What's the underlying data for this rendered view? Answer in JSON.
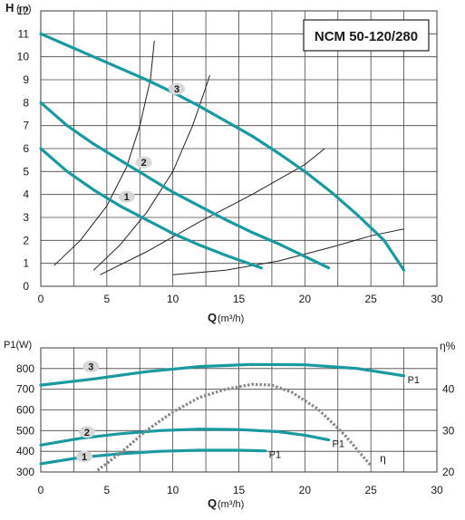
{
  "chart_data": [
    {
      "type": "line",
      "title": "NCM 50-120/280",
      "ylabel": "H",
      "yunit": "(m)",
      "xlabel": "Q",
      "xunit": "(m³/h)",
      "xlim": [
        0,
        30
      ],
      "ylim": [
        0,
        12
      ],
      "xticks": [
        "0",
        "5",
        "10",
        "15",
        "20",
        "25",
        "30"
      ],
      "yticks": [
        "0",
        "1",
        "2",
        "3",
        "4",
        "5",
        "6",
        "7",
        "8",
        "9",
        "10",
        "11",
        "12"
      ],
      "grid": true,
      "curve_color": "#1a9aa0",
      "series": [
        {
          "name": "1",
          "label_at": [
            6.5,
            3.9
          ],
          "points": [
            [
              0,
              6.0
            ],
            [
              2,
              5.0
            ],
            [
              4,
              4.2
            ],
            [
              6,
              3.5
            ],
            [
              8,
              2.9
            ],
            [
              10,
              2.3
            ],
            [
              12,
              1.8
            ],
            [
              14,
              1.35
            ],
            [
              16.7,
              0.8
            ]
          ]
        },
        {
          "name": "2",
          "label_at": [
            7.8,
            5.4
          ],
          "points": [
            [
              0,
              8.0
            ],
            [
              2,
              7.0
            ],
            [
              4,
              6.2
            ],
            [
              6,
              5.5
            ],
            [
              8,
              4.8
            ],
            [
              10,
              4.1
            ],
            [
              12,
              3.5
            ],
            [
              14,
              2.9
            ],
            [
              16,
              2.35
            ],
            [
              18,
              1.85
            ],
            [
              20,
              1.3
            ],
            [
              21.8,
              0.8
            ]
          ]
        },
        {
          "name": "3",
          "label_at": [
            10.3,
            8.6
          ],
          "points": [
            [
              0,
              11.0
            ],
            [
              2,
              10.5
            ],
            [
              4,
              10.0
            ],
            [
              6,
              9.5
            ],
            [
              8,
              9.0
            ],
            [
              10,
              8.45
            ],
            [
              12,
              7.85
            ],
            [
              14,
              7.2
            ],
            [
              16,
              6.55
            ],
            [
              18,
              5.8
            ],
            [
              20,
              5.0
            ],
            [
              22,
              4.1
            ],
            [
              24,
              3.1
            ],
            [
              26,
              2.0
            ],
            [
              27.5,
              0.7
            ]
          ]
        }
      ],
      "system_curves": [
        [
          [
            1,
            0.9
          ],
          [
            3,
            2.0
          ],
          [
            5,
            3.5
          ],
          [
            6.5,
            5.2
          ],
          [
            7.5,
            7.0
          ],
          [
            8.3,
            9.0
          ],
          [
            8.6,
            10.7
          ]
        ],
        [
          [
            4,
            0.7
          ],
          [
            6,
            1.8
          ],
          [
            8,
            3.2
          ],
          [
            10,
            5.0
          ],
          [
            11.5,
            7.0
          ],
          [
            12.4,
            8.5
          ],
          [
            12.8,
            9.2
          ]
        ],
        [
          [
            4.5,
            0.5
          ],
          [
            8,
            1.5
          ],
          [
            12,
            2.8
          ],
          [
            16,
            4.0
          ],
          [
            20,
            5.3
          ],
          [
            21.5,
            6.0
          ]
        ],
        [
          [
            10,
            0.5
          ],
          [
            14,
            0.7
          ],
          [
            18,
            1.1
          ],
          [
            22,
            1.7
          ],
          [
            25,
            2.2
          ],
          [
            27.5,
            2.5
          ]
        ]
      ]
    },
    {
      "type": "line",
      "ylabel": "P1(W)",
      "y2label": "η%",
      "xlabel": "Q",
      "xunit": "(m³/h)",
      "xlim": [
        0,
        30
      ],
      "ylim": [
        300,
        900
      ],
      "y2lim": [
        20,
        50
      ],
      "xticks": [
        "0",
        "5",
        "10",
        "15",
        "20",
        "25",
        "30"
      ],
      "yticks": [
        "300",
        "400",
        "500",
        "600",
        "700",
        "800"
      ],
      "y2ticks": [
        "20",
        "30",
        "40"
      ],
      "grid": true,
      "curve_color": "#1a9aa0",
      "efficiency_color": "#888888",
      "series": [
        {
          "name": "1",
          "end_label": "P1",
          "label_at": [
            3.3,
            375
          ],
          "points": [
            [
              0,
              340
            ],
            [
              3,
              370
            ],
            [
              6,
              388
            ],
            [
              9,
              400
            ],
            [
              12,
              405
            ],
            [
              15,
              405
            ],
            [
              17,
              402
            ]
          ]
        },
        {
          "name": "2",
          "end_label": "P1",
          "label_at": [
            3.5,
            493
          ],
          "points": [
            [
              0,
              430
            ],
            [
              3,
              463
            ],
            [
              6,
              485
            ],
            [
              9,
              500
            ],
            [
              12,
              507
            ],
            [
              15,
              505
            ],
            [
              18,
              495
            ],
            [
              20,
              478
            ],
            [
              21.8,
              455
            ]
          ]
        },
        {
          "name": "3",
          "end_label": "P1",
          "label_at": [
            3.8,
            810
          ],
          "points": [
            [
              0,
              720
            ],
            [
              4,
              750
            ],
            [
              8,
              785
            ],
            [
              12,
              810
            ],
            [
              16,
              820
            ],
            [
              20,
              818
            ],
            [
              24,
              800
            ],
            [
              27.5,
              765
            ]
          ]
        }
      ],
      "efficiency": {
        "name": "η",
        "points": [
          [
            4.3,
            20.4
          ],
          [
            6,
            24.5
          ],
          [
            8,
            30.0
          ],
          [
            10,
            34.5
          ],
          [
            12,
            38.0
          ],
          [
            14,
            40.0
          ],
          [
            16,
            41.2
          ],
          [
            17.5,
            41.0
          ],
          [
            19,
            39.3
          ],
          [
            21,
            35.2
          ],
          [
            23,
            29.0
          ],
          [
            25,
            21.5
          ]
        ]
      }
    }
  ]
}
